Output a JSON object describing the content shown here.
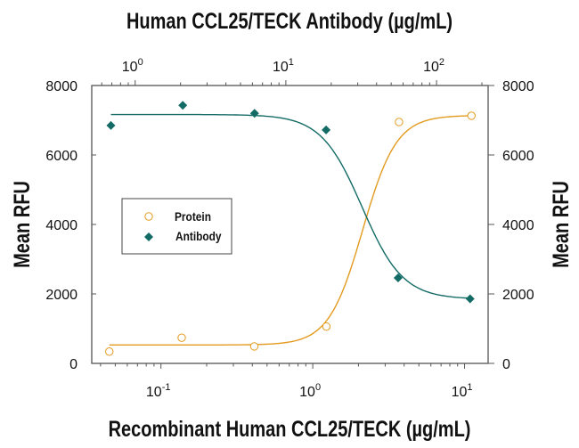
{
  "chart_data": {
    "type": "scatter",
    "title": "Human CCL25/TECK Antibody (µg/mL)",
    "xlabel": "Recombinant Human CCL25/TECK (µg/mL)",
    "ylabel": "Mean RFU",
    "ylabel_right": "Mean RFU",
    "x_scale": "log",
    "xlim": [
      0.035,
      14.3
    ],
    "x_ticks": [
      {
        "base": "10",
        "exp": "-1",
        "value": 0.1
      },
      {
        "base": "10",
        "exp": "0",
        "value": 1
      },
      {
        "base": "10",
        "exp": "1",
        "value": 10
      }
    ],
    "x2_scale": "log",
    "x2lim": [
      0.515,
      220
    ],
    "x2_ticks": [
      {
        "base": "10",
        "exp": "0",
        "value": 1
      },
      {
        "base": "10",
        "exp": "1",
        "value": 10
      },
      {
        "base": "10",
        "exp": "2",
        "value": 100
      }
    ],
    "ylim": [
      0,
      8000
    ],
    "y_ticks": [
      "0",
      "2000",
      "4000",
      "6000",
      "8000"
    ],
    "grid": false,
    "legend": "center-left",
    "series": [
      {
        "name": "Protein",
        "axis": "bottom",
        "marker": "open-circle",
        "color": "#E39B1F",
        "x": [
          0.0457,
          0.137,
          0.412,
          1.23,
          3.7,
          11.1
        ],
        "y": [
          340,
          740,
          490,
          1060,
          6950,
          7130
        ],
        "fit": {
          "bottom": 530,
          "top": 7140,
          "ec50": 2.13,
          "hill": 3.9
        }
      },
      {
        "name": "Antibody",
        "axis": "top",
        "marker": "filled-diamond",
        "color": "#136B66",
        "x": [
          0.69,
          2.07,
          6.2,
          18.5,
          55.6,
          167
        ],
        "y": [
          6850,
          7430,
          7200,
          6720,
          2460,
          1860
        ],
        "fit": {
          "bottom": 1850,
          "top": 7165,
          "ec50": 32,
          "hill": -3.2
        }
      }
    ]
  }
}
